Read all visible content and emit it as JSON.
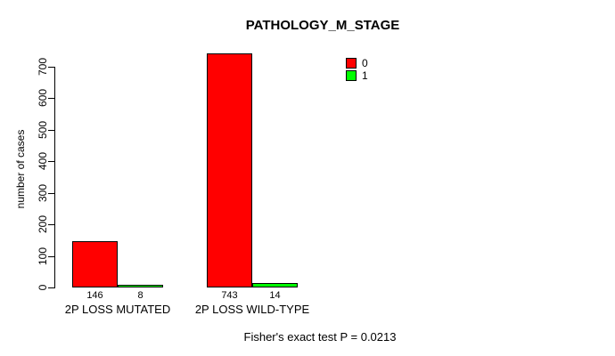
{
  "chart_data": {
    "type": "bar",
    "title": "PATHOLOGY_M_STAGE",
    "categories": [
      "2P LOSS MUTATED",
      "2P LOSS WILD-TYPE"
    ],
    "series": [
      {
        "name": "0",
        "color": "#ff0000",
        "values": [
          146,
          743
        ]
      },
      {
        "name": "1",
        "color": "#00ff00",
        "values": [
          8,
          14
        ]
      }
    ],
    "xlabel": "",
    "ylabel": "number of cases",
    "ylim": [
      0,
      700
    ],
    "yticks": [
      0,
      100,
      200,
      300,
      400,
      500,
      600,
      700
    ],
    "bar_value_labels": [
      [
        146,
        743
      ],
      [
        8,
        14
      ]
    ],
    "grid": false,
    "legend": {
      "position": "top-right",
      "entries": [
        "0",
        "1"
      ]
    },
    "annotation": "Fisher's exact test P = 0.0213"
  },
  "colors": {
    "background": "#ffffff",
    "bar_border": "#000000",
    "axis": "#000000",
    "text": "#000000",
    "series0": "#ff0000",
    "series1": "#00ff00"
  }
}
